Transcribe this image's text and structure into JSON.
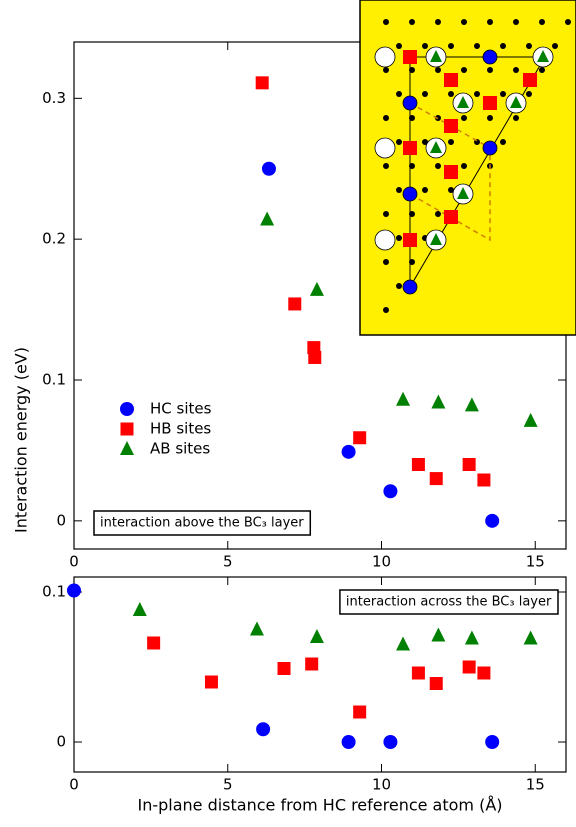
{
  "chart_data": [
    {
      "type": "scatter",
      "y_label": "Interaction energy (eV)",
      "annotation": "interaction above the BC₃ layer",
      "legend": "center left",
      "xlim": [
        0,
        16
      ],
      "xticks": [
        0,
        5,
        10,
        15
      ],
      "ylim": [
        -0.02,
        0.34
      ],
      "yticks": [
        0,
        0.1,
        0.2,
        0.3
      ],
      "series": [
        {
          "name": "HC sites",
          "color": "#0000ff",
          "marker": "circle",
          "x": [
            6.34,
            8.93,
            10.29,
            13.6
          ],
          "values": [
            0.25,
            0.049,
            0.021,
            0
          ]
        },
        {
          "name": "HB sites",
          "color": "#ff0000",
          "marker": "square",
          "x": [
            6.12,
            7.18,
            7.8,
            7.83,
            9.29,
            11.2,
            11.78,
            12.85,
            13.33
          ],
          "values": [
            0.311,
            0.154,
            0.123,
            0.116,
            0.059,
            0.04,
            0.03,
            0.04,
            0.029
          ]
        },
        {
          "name": "AB sites",
          "color": "#008000",
          "marker": "triangle",
          "x": [
            6.28,
            7.9,
            10.7,
            11.85,
            12.94,
            14.85
          ],
          "values": [
            0.214,
            0.164,
            0.086,
            0.084,
            0.082,
            0.071
          ]
        }
      ]
    },
    {
      "type": "scatter",
      "x_label": "In-plane distance from HC reference atom (Å)",
      "annotation": "interaction across the BC₃ layer",
      "xlim": [
        0,
        16
      ],
      "xticks": [
        0,
        5,
        10,
        15
      ],
      "ylim": [
        -0.02,
        0.11
      ],
      "yticks": [
        0,
        0.1
      ],
      "series": [
        {
          "name": "HC sites",
          "color": "#0000ff",
          "marker": "circle",
          "x": [
            0,
            6.15,
            8.93,
            10.29,
            13.6
          ],
          "values": [
            0.101,
            0.0085,
            0,
            0,
            0
          ]
        },
        {
          "name": "HB sites",
          "color": "#ff0000",
          "marker": "square",
          "x": [
            2.59,
            4.47,
            6.83,
            7.73,
            9.29,
            11.2,
            11.78,
            12.85,
            13.33
          ],
          "values": [
            0.066,
            0.04,
            0.049,
            0.052,
            0.02,
            0.046,
            0.039,
            0.05,
            0.046
          ]
        },
        {
          "name": "AB sites",
          "color": "#008000",
          "marker": "triangle",
          "x": [
            2.14,
            5.95,
            7.9,
            10.7,
            11.85,
            12.94,
            14.85
          ],
          "values": [
            0.088,
            0.075,
            0.07,
            0.065,
            0.071,
            0.069,
            0.069
          ]
        }
      ]
    }
  ]
}
